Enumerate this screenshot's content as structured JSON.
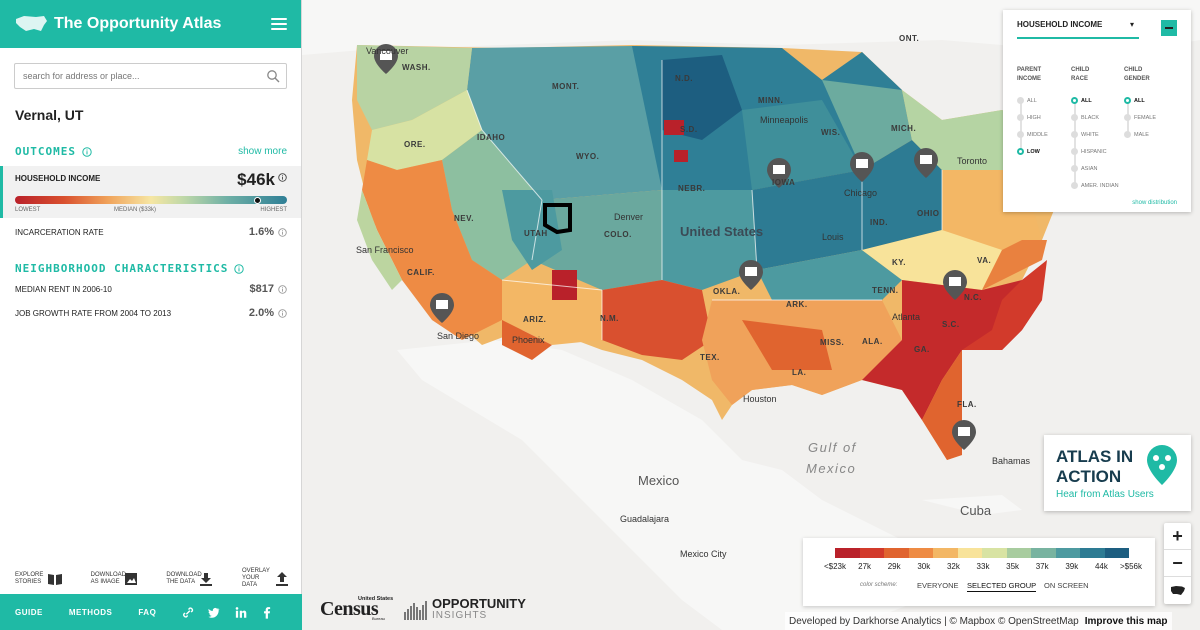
{
  "app": {
    "title": "The Opportunity Atlas"
  },
  "search": {
    "placeholder": "search for address or place..."
  },
  "location": "Vernal, UT",
  "outcomes": {
    "heading": "OUTCOMES",
    "show_more": "show more",
    "items": [
      {
        "label": "HOUSEHOLD INCOME",
        "value": "$46k",
        "scale_low": "LOWEST",
        "scale_mid": "MEDIAN ($33k)",
        "scale_high": "HIGHEST",
        "marker_fraction": 0.89
      },
      {
        "label": "INCARCERATION RATE",
        "value": "1.6%"
      }
    ]
  },
  "neighborhood": {
    "heading": "NEIGHBORHOOD CHARACTERISTICS",
    "items": [
      {
        "label": "MEDIAN RENT IN 2006-10",
        "value": "$817"
      },
      {
        "label": "JOB GROWTH RATE FROM 2004 TO 2013",
        "value": "2.0%"
      }
    ]
  },
  "tools": [
    {
      "line1": "EXPLORE",
      "line2": "STORIES",
      "icon": "book-icon"
    },
    {
      "line1": "DOWNLOAD",
      "line2": "AS IMAGE",
      "icon": "image-icon"
    },
    {
      "line1": "DOWNLOAD",
      "line2": "THE DATA",
      "icon": "download-icon"
    },
    {
      "line1": "OVERLAY",
      "line2": "YOUR DATA",
      "icon": "upload-icon"
    }
  ],
  "footer": {
    "links": [
      "GUIDE",
      "METHODS",
      "FAQ"
    ],
    "icons": [
      "link-icon",
      "twitter-icon",
      "linkedin-icon",
      "facebook-icon"
    ]
  },
  "filter_panel": {
    "title": "HOUSEHOLD INCOME",
    "show_distribution": "show distribution",
    "columns": [
      {
        "heading_1": "PARENT",
        "heading_2": "INCOME",
        "options": [
          "ALL",
          "HIGH",
          "MIDDLE",
          "LOW"
        ],
        "selected": "LOW"
      },
      {
        "heading_1": "CHILD",
        "heading_2": "RACE",
        "options": [
          "ALL",
          "BLACK",
          "WHITE",
          "HISPANIC",
          "ASIAN",
          "AMER. INDIAN"
        ],
        "selected": "ALL"
      },
      {
        "heading_1": "CHILD",
        "heading_2": "GENDER",
        "options": [
          "ALL",
          "FEMALE",
          "MALE"
        ],
        "selected": "ALL"
      }
    ]
  },
  "atlas_in_action": {
    "line1": "ATLAS IN",
    "line2": "ACTION",
    "subtitle": "Hear from Atlas Users"
  },
  "legend": {
    "ticks": [
      "<$23k",
      "27k",
      "29k",
      "30k",
      "32k",
      "33k",
      "35k",
      "37k",
      "39k",
      "44k",
      ">$56k"
    ],
    "colors": [
      "#b9212a",
      "#d23a2b",
      "#e0642f",
      "#ee8b44",
      "#f3b765",
      "#f8e39a",
      "#d8e3a3",
      "#a8cc9f",
      "#78b3a0",
      "#4d9aa0",
      "#2d7b93",
      "#1d5e80"
    ],
    "color_scheme_label": "color scheme:",
    "options": [
      "EVERYONE",
      "SELECTED GROUP",
      "ON SCREEN"
    ],
    "selected_option": "SELECTED GROUP"
  },
  "map": {
    "state_labels": [
      "WASH.",
      "MONT.",
      "N.D.",
      "MINN.",
      "IDAHO",
      "ORE.",
      "WYO.",
      "S.D.",
      "WIS.",
      "MICH.",
      "NEBR.",
      "IOWA",
      "NEV.",
      "UTAH",
      "COLO.",
      "CALIF.",
      "ARIZ.",
      "N.M.",
      "OKLA.",
      "ARK.",
      "TENN.",
      "TEX.",
      "MISS.",
      "ALA.",
      "GA.",
      "S.C.",
      "N.C.",
      "LA.",
      "FLA.",
      "IND.",
      "OHIO",
      "VA.",
      "ONT.",
      "KY."
    ],
    "city_labels": [
      "Vancouver",
      "Minneapolis",
      "Toronto",
      "Chicago",
      "Denver",
      "San Francisco",
      "Louis",
      "San Diego",
      "Phoenix",
      "Atlanta",
      "Houston",
      "Guadalajara",
      "Mexico City",
      "Bahamas"
    ],
    "country_labels": [
      "United States",
      "Mexico",
      "Cuba"
    ],
    "water_labels": [
      "Gulf of",
      "Mexico"
    ]
  },
  "branding": {
    "census_top": "United States",
    "census_main": "Census",
    "census_sub": "Bureau",
    "oi_line1": "OPPORTUNITY",
    "oi_line2": "INSIGHTS"
  },
  "credit": {
    "text": "Developed by Darkhorse Analytics | © Mapbox © OpenStreetMap",
    "link": "Improve this map"
  }
}
